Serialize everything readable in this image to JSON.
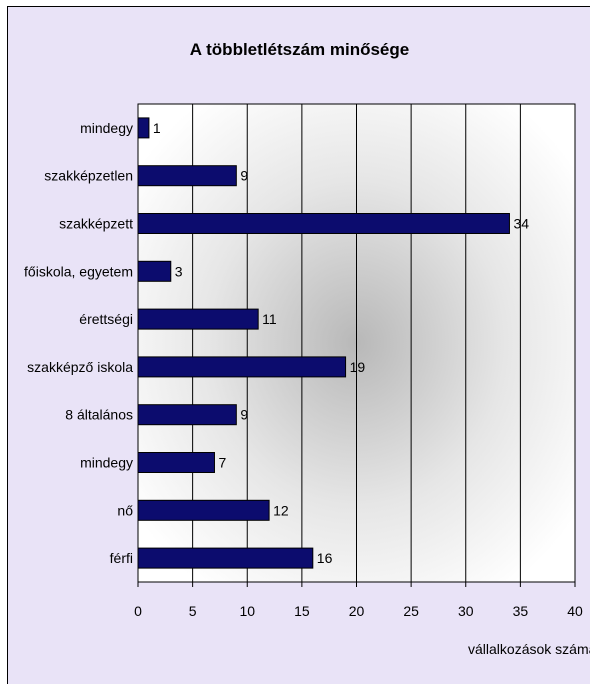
{
  "chart_data": {
    "type": "bar",
    "orientation": "horizontal",
    "title": "A többletlétszám minősége",
    "xlabel": "vállalkozások száma",
    "ylabel": "",
    "categories": [
      "mindegy",
      "szakképzetlen",
      "szakképzett",
      "főiskola, egyetem",
      "érettségi",
      "szakképző iskola",
      "8 általános",
      "mindegy",
      "nő",
      "férfi"
    ],
    "values": [
      1,
      9,
      34,
      3,
      11,
      19,
      9,
      7,
      12,
      16
    ],
    "xlim": [
      0,
      40
    ],
    "xticks": [
      0,
      5,
      10,
      15,
      20,
      25,
      30,
      35,
      40
    ],
    "grid": true,
    "legend": "none",
    "bar_color": "#0c0c6e",
    "background_color": "#e9e3f7"
  }
}
